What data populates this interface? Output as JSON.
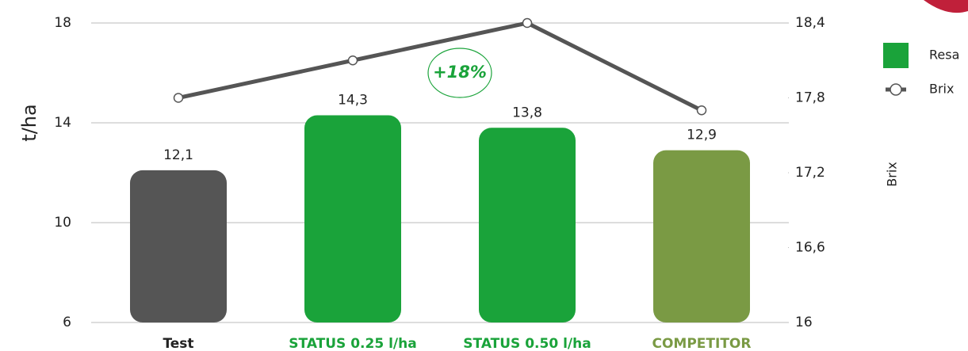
{
  "chart_data": {
    "type": "bar",
    "categories": [
      "Test",
      "STATUS 0.25 l/ha",
      "STATUS 0.50 l/ha",
      "COMPETITOR"
    ],
    "category_colors": [
      "#222222",
      "#1aa33a",
      "#1aa33a",
      "#7a9a44"
    ],
    "y_label": "t/ha",
    "y2_label": "Brix",
    "annotation": "+18%",
    "series": [
      {
        "name": "Resa",
        "type": "bar",
        "color": "#1aa33a",
        "colors": [
          "#555555",
          "#1aa33a",
          "#1aa33a",
          "#7a9a44"
        ],
        "values": [
          12.1,
          14.3,
          13.8,
          12.9
        ],
        "value_labels": [
          "12,1",
          "14,3",
          "13,8",
          "12,9"
        ]
      },
      {
        "name": "Brix",
        "type": "line",
        "axis": "y2",
        "color": "#555555",
        "values": [
          17.8,
          18.1,
          18.4,
          17.7
        ]
      }
    ],
    "ylim": [
      6,
      18
    ],
    "yticks": [
      6,
      10,
      14,
      18
    ],
    "y2lim": [
      16,
      18.4
    ],
    "y2ticks": [
      16,
      {
        "value": 16.6,
        "label": "16,6"
      },
      {
        "value": 17.2,
        "label": "17,2"
      },
      {
        "value": 17.8,
        "label": "17,8"
      },
      {
        "value": 18.4,
        "label": "18,4"
      }
    ],
    "grid": true
  }
}
